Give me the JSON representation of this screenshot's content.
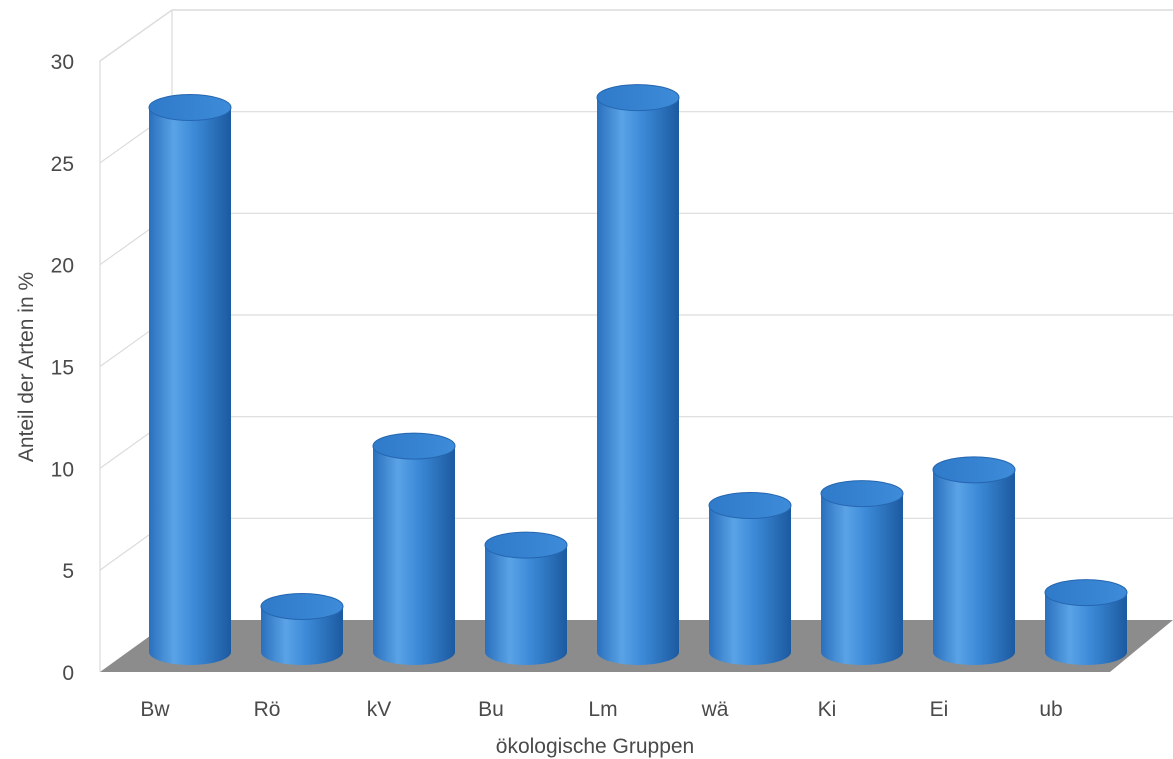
{
  "chart_data": {
    "type": "bar",
    "title": "",
    "xlabel": "ökologische Gruppen",
    "ylabel": "Anteil der Arten in %",
    "categories": [
      "Bw",
      "Rö",
      "kV",
      "Bu",
      "Lm",
      "wä",
      "Ki",
      "Ei",
      "ub"
    ],
    "values": [
      27.5,
      2.3,
      10.4,
      5.4,
      28.0,
      7.4,
      8.0,
      9.2,
      3.0
    ],
    "ylim": [
      0,
      30
    ],
    "yticks": [
      0,
      5,
      10,
      15,
      20,
      25,
      30
    ],
    "grid": true,
    "style": "3d-cylinder",
    "colors": {
      "bar": "#3c8ad8",
      "bar_dark": "#1d5ea8",
      "bar_light": "#7dbaf0",
      "floor": "#8c8c8c",
      "grid": "#dcdcdc",
      "text": "#4a4a4a"
    }
  }
}
